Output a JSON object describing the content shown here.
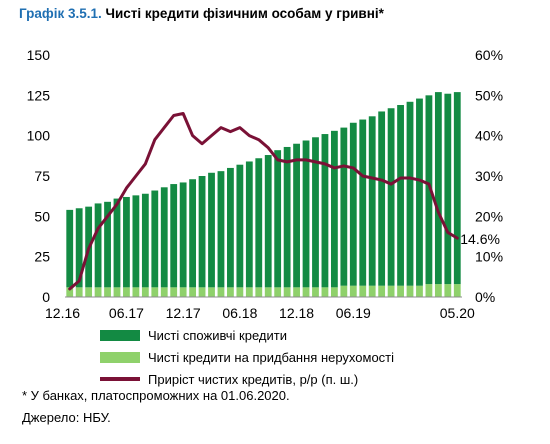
{
  "title": {
    "lead": "Графік 3.5.1.",
    "text": "Чисті кредити фізичним особам у гривні*"
  },
  "colors": {
    "consumer": "#138a43",
    "mortgage": "#8fd16b",
    "growth": "#7a1136",
    "title_accent": "#1f6fb2"
  },
  "legend": {
    "consumer": "Чисті споживчі кредити",
    "mortgage": "Чисті кредити на придбання нерухомості",
    "growth": "Приріст чистих кредитів, р/р (п. ш.)"
  },
  "note": "* У банках, платоспроможних на 01.06.2020.",
  "source": "Джерело: НБУ.",
  "chart_data": {
    "type": "bar",
    "stacked": true,
    "x": [
      "12.16",
      "01.17",
      "02.17",
      "03.17",
      "04.17",
      "05.17",
      "06.17",
      "07.17",
      "08.17",
      "09.17",
      "10.17",
      "11.17",
      "12.17",
      "01.18",
      "02.18",
      "03.18",
      "04.18",
      "05.18",
      "06.18",
      "07.18",
      "08.18",
      "09.18",
      "10.18",
      "11.18",
      "12.18",
      "01.19",
      "02.19",
      "03.19",
      "04.19",
      "05.19",
      "06.19",
      "07.19",
      "08.19",
      "09.19",
      "10.19",
      "11.19",
      "12.19",
      "01.20",
      "02.20",
      "03.20",
      "04.20",
      "05.20"
    ],
    "x_tick_labels": [
      "12.16",
      "06.17",
      "12.17",
      "06.18",
      "12.18",
      "06.19",
      "05.20"
    ],
    "series": [
      {
        "name": "Чисті кредити на придбання нерухомості",
        "axis": "left",
        "values": [
          6,
          6,
          6,
          6,
          6,
          6,
          6,
          6,
          6,
          6,
          6,
          6,
          6,
          6,
          6,
          6,
          6,
          6,
          6,
          6,
          6,
          6,
          6,
          6,
          6,
          6,
          6,
          6,
          6,
          7,
          7,
          7,
          7,
          7,
          7,
          7,
          7,
          7,
          8,
          8,
          8,
          8
        ]
      },
      {
        "name": "Чисті споживчі кредити",
        "axis": "left",
        "values": [
          48,
          49,
          50,
          52,
          53,
          55,
          56,
          57,
          58,
          60,
          62,
          64,
          65,
          67,
          69,
          71,
          72,
          74,
          76,
          78,
          80,
          82,
          85,
          87,
          89,
          91,
          93,
          95,
          97,
          98,
          101,
          103,
          105,
          108,
          110,
          112,
          114,
          116,
          117,
          119,
          118,
          119
        ]
      },
      {
        "name": "Приріст чистих кредитів, р/р (п. ш.)",
        "type": "line",
        "axis": "right",
        "values": [
          2,
          4,
          12,
          17,
          20,
          23,
          27,
          30,
          33,
          39,
          42,
          45,
          45.5,
          40,
          38,
          40,
          42,
          41,
          42,
          40,
          39,
          37,
          34,
          33.5,
          34,
          34,
          33.5,
          33,
          32,
          32.5,
          32,
          30,
          29.5,
          29,
          28,
          29.5,
          29.5,
          29,
          28,
          21,
          16,
          14.6
        ],
        "end_label": "14.6%"
      }
    ],
    "y_left": {
      "min": 0,
      "max": 150,
      "ticks": [
        0,
        25,
        50,
        75,
        100,
        125,
        150
      ]
    },
    "y_right": {
      "min": 0,
      "max": 60,
      "ticks": [
        "0%",
        "10%",
        "20%",
        "30%",
        "40%",
        "50%",
        "60%"
      ]
    },
    "grid": false,
    "legend_position": "bottom"
  }
}
